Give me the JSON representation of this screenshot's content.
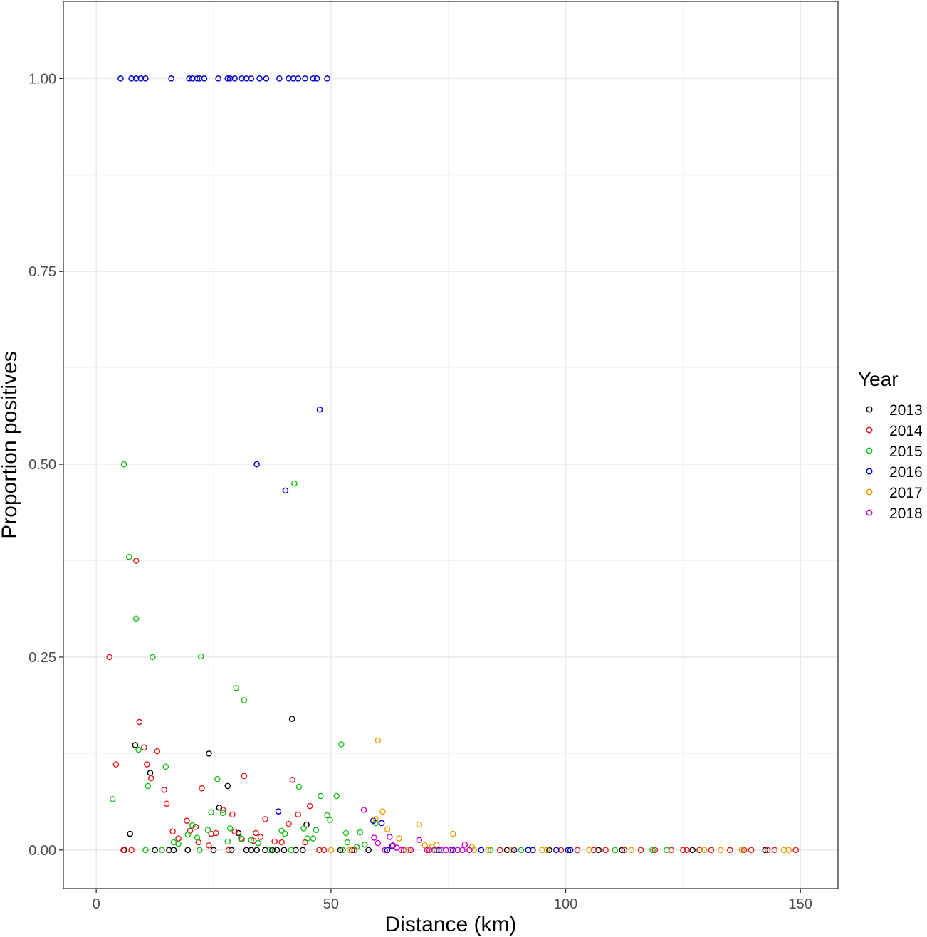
{
  "chart_data": {
    "type": "scatter",
    "title": "",
    "xlabel": "Distance (km)",
    "ylabel": "Proportion positives",
    "xlim": [
      -7,
      158
    ],
    "ylim": [
      -0.05,
      1.1
    ],
    "x_ticks": [
      0,
      50,
      100,
      150
    ],
    "x_tick_labels": [
      "0",
      "50",
      "100",
      "150"
    ],
    "y_ticks": [
      0,
      0.25,
      0.5,
      0.75,
      1
    ],
    "y_tick_labels": [
      "0.00",
      "0.25",
      "0.50",
      "0.75",
      "1.00"
    ],
    "grid": true,
    "legend": {
      "title": "Year",
      "placement": "right"
    },
    "series": [
      {
        "name": "2013",
        "color": "#000000",
        "points": [
          [
            7.2,
            0.021
          ],
          [
            8.3,
            0.136
          ],
          [
            11.5,
            0.1
          ],
          [
            24.0,
            0.125
          ],
          [
            26.2,
            0.055
          ],
          [
            28.0,
            0.083
          ],
          [
            30.3,
            0.022
          ],
          [
            41.7,
            0.17
          ],
          [
            44.8,
            0.033
          ],
          [
            6.0,
            0
          ],
          [
            12.5,
            0
          ],
          [
            15.5,
            0
          ],
          [
            16.5,
            0
          ],
          [
            19.5,
            0
          ],
          [
            25.0,
            0
          ],
          [
            28.8,
            0
          ],
          [
            32.0,
            0
          ],
          [
            33.0,
            0
          ],
          [
            34.2,
            0
          ],
          [
            36.0,
            0
          ],
          [
            37.5,
            0
          ],
          [
            38.5,
            0
          ],
          [
            40.0,
            0
          ],
          [
            42.5,
            0
          ],
          [
            44.0,
            0
          ],
          [
            52.0,
            0
          ],
          [
            54.5,
            0
          ],
          [
            58.0,
            0
          ],
          [
            87.5,
            0
          ],
          [
            96.5,
            0
          ],
          [
            107.0,
            0
          ],
          [
            112.0,
            0
          ],
          [
            127.0,
            0
          ],
          [
            142.5,
            0
          ]
        ]
      },
      {
        "name": "2014",
        "color": "#e41a1c",
        "points": [
          [
            2.8,
            0.25
          ],
          [
            4.2,
            0.111
          ],
          [
            8.5,
            0.375
          ],
          [
            9.2,
            0.166
          ],
          [
            10.2,
            0.133
          ],
          [
            10.8,
            0.111
          ],
          [
            11.7,
            0.093
          ],
          [
            13.0,
            0.128
          ],
          [
            14.5,
            0.078
          ],
          [
            15.0,
            0.06
          ],
          [
            16.3,
            0.024
          ],
          [
            17.5,
            0.015
          ],
          [
            19.3,
            0.038
          ],
          [
            20.0,
            0.025
          ],
          [
            21.2,
            0.03
          ],
          [
            21.8,
            0.01
          ],
          [
            22.5,
            0.08
          ],
          [
            24.0,
            0.006
          ],
          [
            24.5,
            0.021
          ],
          [
            25.5,
            0.022
          ],
          [
            27.0,
            0.052
          ],
          [
            29.0,
            0.046
          ],
          [
            29.5,
            0.024
          ],
          [
            31.0,
            0.014
          ],
          [
            31.5,
            0.096
          ],
          [
            33.5,
            0.012
          ],
          [
            34.0,
            0.022
          ],
          [
            35.0,
            0.017
          ],
          [
            36.0,
            0.04
          ],
          [
            38.0,
            0.011
          ],
          [
            39.5,
            0.01
          ],
          [
            41.0,
            0.034
          ],
          [
            41.8,
            0.091
          ],
          [
            43.0,
            0.046
          ],
          [
            44.5,
            0.01
          ],
          [
            45.5,
            0.057
          ],
          [
            5.8,
            0
          ],
          [
            7.5,
            0
          ],
          [
            28.2,
            0
          ],
          [
            47.5,
            0
          ],
          [
            48.5,
            0
          ],
          [
            55.0,
            0
          ],
          [
            65.5,
            0
          ],
          [
            71.0,
            0
          ],
          [
            86.0,
            0
          ],
          [
            99.0,
            0
          ],
          [
            102.5,
            0
          ],
          [
            106.0,
            0
          ],
          [
            108.5,
            0
          ],
          [
            112.5,
            0
          ],
          [
            116.0,
            0
          ],
          [
            119.0,
            0
          ],
          [
            122.5,
            0
          ],
          [
            125.0,
            0
          ],
          [
            125.8,
            0
          ],
          [
            128.5,
            0
          ],
          [
            131.0,
            0
          ],
          [
            135.0,
            0
          ],
          [
            138.0,
            0
          ],
          [
            139.5,
            0
          ],
          [
            143.0,
            0
          ],
          [
            144.5,
            0
          ],
          [
            149.0,
            0
          ]
        ]
      },
      {
        "name": "2015",
        "color": "#17c017",
        "points": [
          [
            3.5,
            0.066
          ],
          [
            5.9,
            0.5
          ],
          [
            7.0,
            0.38
          ],
          [
            8.5,
            0.3
          ],
          [
            9.0,
            0.13
          ],
          [
            11.0,
            0.083
          ],
          [
            12.0,
            0.25
          ],
          [
            14.8,
            0.108
          ],
          [
            16.5,
            0.01
          ],
          [
            17.5,
            0.008
          ],
          [
            19.5,
            0.02
          ],
          [
            20.5,
            0.032
          ],
          [
            21.5,
            0.016
          ],
          [
            22.3,
            0.251
          ],
          [
            23.8,
            0.026
          ],
          [
            24.5,
            0.049
          ],
          [
            25.8,
            0.092
          ],
          [
            27.0,
            0.048
          ],
          [
            28.0,
            0.011
          ],
          [
            28.5,
            0.028
          ],
          [
            29.8,
            0.21
          ],
          [
            30.8,
            0.015
          ],
          [
            31.5,
            0.194
          ],
          [
            33.0,
            0.013
          ],
          [
            34.5,
            0.009
          ],
          [
            39.5,
            0.025
          ],
          [
            40.2,
            0.021
          ],
          [
            42.2,
            0.475
          ],
          [
            43.2,
            0.082
          ],
          [
            44.2,
            0.028
          ],
          [
            45.0,
            0.015
          ],
          [
            46.2,
            0.015
          ],
          [
            46.8,
            0.026
          ],
          [
            47.8,
            0.07
          ],
          [
            49.2,
            0.045
          ],
          [
            49.8,
            0.039
          ],
          [
            51.2,
            0.07
          ],
          [
            52.2,
            0.137
          ],
          [
            53.2,
            0.022
          ],
          [
            53.5,
            0.01
          ],
          [
            55.5,
            0.004
          ],
          [
            56.2,
            0.023
          ],
          [
            57.2,
            0.007
          ],
          [
            59.5,
            0.035
          ],
          [
            10.5,
            0
          ],
          [
            14.0,
            0
          ],
          [
            22.0,
            0
          ],
          [
            37.0,
            0
          ],
          [
            41.5,
            0
          ],
          [
            52.5,
            0
          ],
          [
            72.5,
            0
          ],
          [
            84.0,
            0
          ],
          [
            90.5,
            0
          ],
          [
            110.5,
            0
          ],
          [
            118.5,
            0
          ],
          [
            121.5,
            0
          ]
        ]
      },
      {
        "name": "2016",
        "color": "#0000cc",
        "points": [
          [
            5.2,
            1
          ],
          [
            7.5,
            1
          ],
          [
            8.5,
            1
          ],
          [
            9.5,
            1
          ],
          [
            10.5,
            1
          ],
          [
            16.0,
            1
          ],
          [
            19.8,
            1
          ],
          [
            20.5,
            1
          ],
          [
            21.5,
            1
          ],
          [
            22.0,
            1
          ],
          [
            23.0,
            1
          ],
          [
            26.0,
            1
          ],
          [
            28.0,
            1
          ],
          [
            28.5,
            1
          ],
          [
            29.5,
            1
          ],
          [
            31.0,
            1
          ],
          [
            32.0,
            1
          ],
          [
            33.0,
            1
          ],
          [
            34.8,
            1
          ],
          [
            36.2,
            1
          ],
          [
            39.0,
            1
          ],
          [
            41.0,
            1
          ],
          [
            42.0,
            1
          ],
          [
            43.0,
            1
          ],
          [
            44.5,
            1
          ],
          [
            46.2,
            1
          ],
          [
            47.0,
            1
          ],
          [
            49.2,
            1
          ],
          [
            47.6,
            0.571
          ],
          [
            34.2,
            0.5
          ],
          [
            40.3,
            0.466
          ],
          [
            38.8,
            0.05
          ],
          [
            59.0,
            0.038
          ],
          [
            60.8,
            0.035
          ],
          [
            63.0,
            0.005
          ],
          [
            62.0,
            0
          ],
          [
            73.0,
            0
          ],
          [
            76.0,
            0
          ],
          [
            82.0,
            0
          ],
          [
            89.0,
            0
          ],
          [
            92.0,
            0
          ],
          [
            93.0,
            0
          ],
          [
            98.0,
            0
          ],
          [
            100.5,
            0
          ],
          [
            101.0,
            0
          ]
        ]
      },
      {
        "name": "2017",
        "color": "#e69f00",
        "points": [
          [
            60.0,
            0.142
          ],
          [
            61.0,
            0.05
          ],
          [
            59.5,
            0.04
          ],
          [
            62.0,
            0.027
          ],
          [
            64.5,
            0.015
          ],
          [
            68.8,
            0.033
          ],
          [
            70.0,
            0.006
          ],
          [
            71.5,
            0.004
          ],
          [
            72.5,
            0.007
          ],
          [
            76.0,
            0.021
          ],
          [
            80.0,
            0.004
          ],
          [
            50.0,
            0
          ],
          [
            54.0,
            0
          ],
          [
            66.5,
            0
          ],
          [
            80.5,
            0
          ],
          [
            83.5,
            0
          ],
          [
            88.5,
            0
          ],
          [
            95.0,
            0
          ],
          [
            96.0,
            0
          ],
          [
            105.0,
            0
          ],
          [
            114.0,
            0
          ],
          [
            129.5,
            0
          ],
          [
            133.0,
            0
          ],
          [
            137.5,
            0
          ],
          [
            146.5,
            0
          ],
          [
            147.5,
            0
          ]
        ]
      },
      {
        "name": "2018",
        "color": "#cc00cc",
        "points": [
          [
            57.0,
            0.052
          ],
          [
            59.2,
            0.016
          ],
          [
            60.0,
            0.009
          ],
          [
            62.5,
            0.017
          ],
          [
            63.2,
            0.006
          ],
          [
            64.0,
            0.003
          ],
          [
            68.8,
            0.013
          ],
          [
            78.5,
            0.007
          ],
          [
            61.5,
            0
          ],
          [
            65.0,
            0
          ],
          [
            67.0,
            0
          ],
          [
            70.5,
            0
          ],
          [
            72.0,
            0
          ],
          [
            73.5,
            0
          ],
          [
            74.5,
            0
          ],
          [
            75.5,
            0
          ],
          [
            77.0,
            0
          ],
          [
            78.0,
            0
          ],
          [
            79.5,
            0
          ]
        ]
      }
    ]
  }
}
